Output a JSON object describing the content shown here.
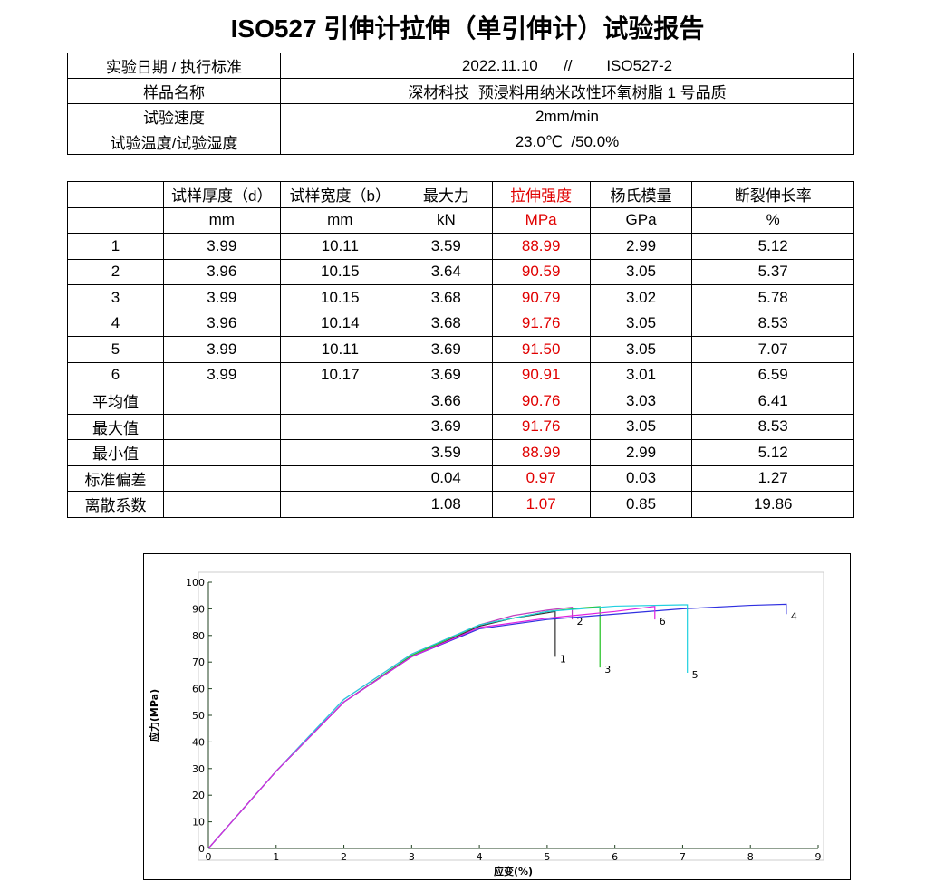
{
  "header": {
    "title": "ISO527 引伸计拉伸（单引伸计）试验报告"
  },
  "info_table": {
    "rows": [
      [
        "实验日期 / 执行标准",
        "2022.11.10      //        ISO527-2"
      ],
      [
        "样品名称",
        "深材科技  预浸料用纳米改性环氧树脂 1 号品质"
      ],
      [
        "试验速度",
        "2mm/min"
      ],
      [
        "试验温度/试验湿度",
        "23.0℃  /50.0%"
      ]
    ]
  },
  "data_table": {
    "header": [
      "",
      "试样厚度（d）",
      "试样宽度（b）",
      "最大力",
      "拉伸强度",
      "杨氏模量",
      "断裂伸长率"
    ],
    "units": [
      "",
      "mm",
      "mm",
      "kN",
      "MPa",
      "GPa",
      "%"
    ],
    "rows": [
      [
        "1",
        "3.99",
        "10.11",
        "3.59",
        "88.99",
        "2.99",
        "5.12"
      ],
      [
        "2",
        "3.96",
        "10.15",
        "3.64",
        "90.59",
        "3.05",
        "5.37"
      ],
      [
        "3",
        "3.99",
        "10.15",
        "3.68",
        "90.79",
        "3.02",
        "5.78"
      ],
      [
        "4",
        "3.96",
        "10.14",
        "3.68",
        "91.76",
        "3.05",
        "8.53"
      ],
      [
        "5",
        "3.99",
        "10.11",
        "3.69",
        "91.50",
        "3.05",
        "7.07"
      ],
      [
        "6",
        "3.99",
        "10.17",
        "3.69",
        "90.91",
        "3.01",
        "6.59"
      ],
      [
        "平均值",
        "",
        "",
        "3.66",
        "90.76",
        "3.03",
        "6.41"
      ],
      [
        "最大值",
        "",
        "",
        "3.69",
        "91.76",
        "3.05",
        "8.53"
      ],
      [
        "最小值",
        "",
        "",
        "3.59",
        "88.99",
        "2.99",
        "5.12"
      ],
      [
        "标准偏差",
        "",
        "",
        "0.04",
        "0.97",
        "0.03",
        "1.27"
      ],
      [
        "离散系数",
        "",
        "",
        "1.08",
        "1.07",
        "0.85",
        "19.86"
      ]
    ]
  },
  "chart_data": {
    "type": "line",
    "x_label": "应变(%)",
    "y_label": "应力(MPa)",
    "xlim": [
      0,
      9
    ],
    "ylim": [
      0,
      100
    ],
    "xticks": [
      0,
      1,
      2,
      3,
      4,
      5,
      6,
      7,
      8,
      9
    ],
    "yticks": [
      0,
      10,
      20,
      30,
      40,
      50,
      60,
      70,
      80,
      90,
      100
    ],
    "series": [
      {
        "name": "1",
        "color": "#303030",
        "x": [
          0,
          1,
          2,
          3,
          4,
          4.5,
          5,
          5.12,
          5.12
        ],
        "values": [
          0,
          29,
          55,
          72,
          83.5,
          86.5,
          88.5,
          89,
          72
        ]
      },
      {
        "name": "2",
        "color": "#c040c0",
        "x": [
          0,
          1,
          2,
          3,
          4,
          4.5,
          5,
          5.37,
          5.37
        ],
        "values": [
          0,
          29,
          56,
          73,
          84,
          87.5,
          89.5,
          90.6,
          86
        ]
      },
      {
        "name": "3",
        "color": "#20c020",
        "x": [
          0,
          1,
          2,
          3,
          4,
          5,
          5.5,
          5.78,
          5.78
        ],
        "values": [
          0,
          29,
          55,
          72.5,
          84,
          89,
          90.3,
          90.8,
          68
        ]
      },
      {
        "name": "4",
        "color": "#3030e0",
        "x": [
          0,
          1,
          2,
          3,
          4,
          5,
          6,
          7,
          8,
          8.53,
          8.53
        ],
        "values": [
          0,
          29,
          55,
          72,
          82.5,
          86,
          88,
          90,
          91.3,
          91.7,
          88
        ]
      },
      {
        "name": "5",
        "color": "#20d0e0",
        "x": [
          0,
          1,
          2,
          3,
          4,
          5,
          6,
          7,
          7.07,
          7.07
        ],
        "values": [
          0,
          29,
          56,
          73,
          84,
          89,
          91,
          91.5,
          91.5,
          66
        ]
      },
      {
        "name": "6",
        "color": "#e020e0",
        "x": [
          0,
          1,
          2,
          3,
          4,
          5,
          6,
          6.59,
          6.59
        ],
        "values": [
          0,
          29,
          55,
          72,
          83,
          86.5,
          89,
          90.9,
          86
        ]
      }
    ]
  }
}
